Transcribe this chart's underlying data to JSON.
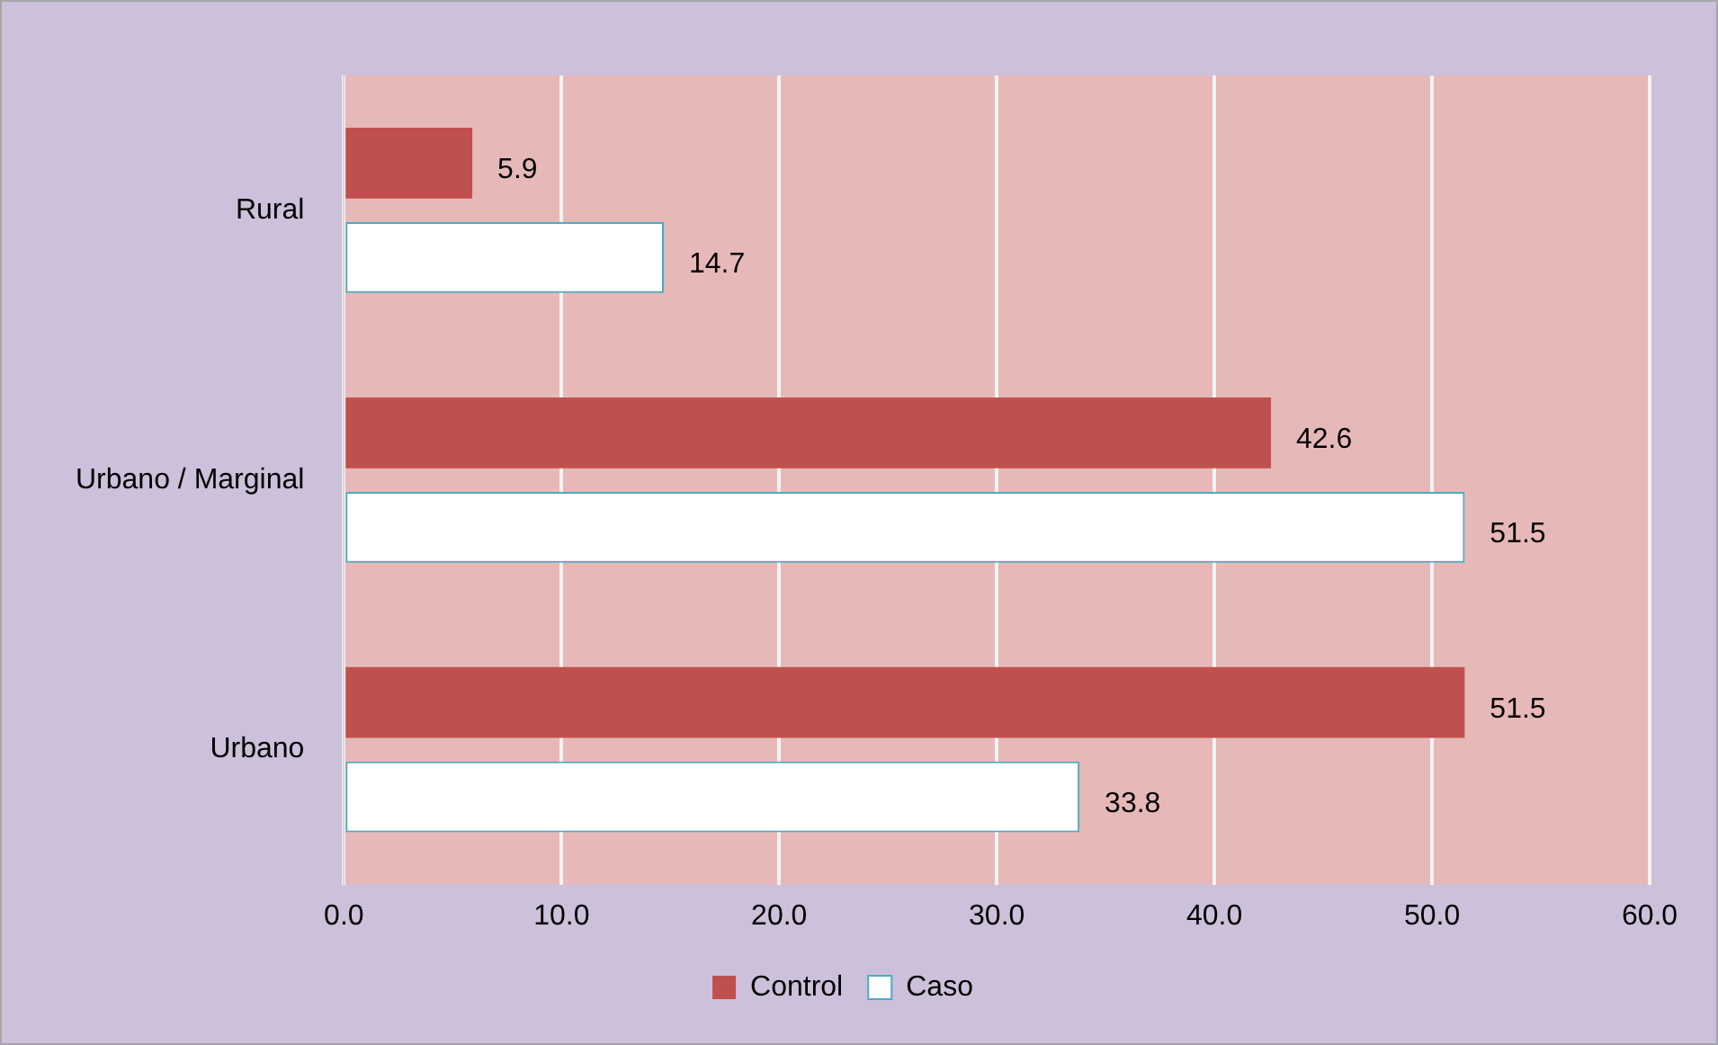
{
  "chart_data": {
    "type": "bar",
    "orientation": "horizontal",
    "categories": [
      "Rural",
      "Urbano / Marginal",
      "Urbano"
    ],
    "series": [
      {
        "name": "Control",
        "color": "#c0504d",
        "values": [
          5.9,
          42.6,
          51.5
        ]
      },
      {
        "name": "Caso",
        "color": "#ffffff",
        "values": [
          14.7,
          51.5,
          33.8
        ]
      }
    ],
    "xlim": [
      0,
      60
    ],
    "xticks": [
      {
        "value": 0,
        "label": "0.0"
      },
      {
        "value": 10,
        "label": "10.0"
      },
      {
        "value": 20,
        "label": "20.0"
      },
      {
        "value": 30,
        "label": "30.0"
      },
      {
        "value": 40,
        "label": "40.0"
      },
      {
        "value": 50,
        "label": "50.0"
      },
      {
        "value": 60,
        "label": "60.0"
      }
    ],
    "grid": "x",
    "legend": "bottom",
    "data_labels": true
  }
}
